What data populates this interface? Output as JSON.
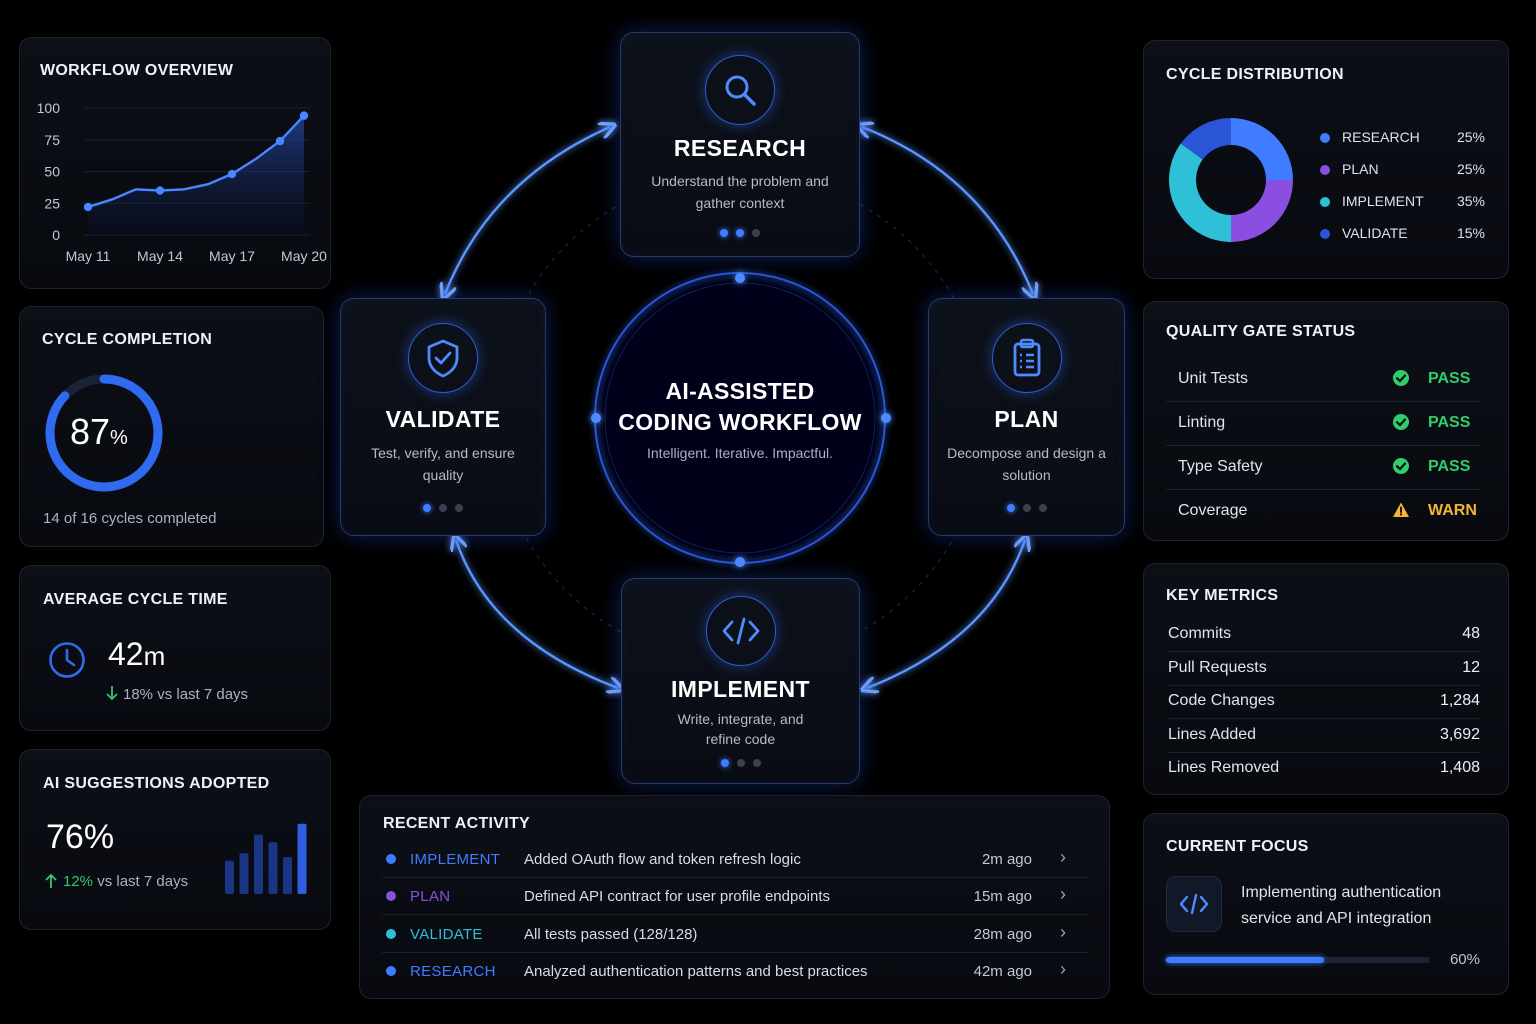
{
  "colors": {
    "research": "#3f7cff",
    "plan": "#8a4fe0",
    "implement": "#2fc0d8",
    "validate": "#2a55d6",
    "pass": "#2fce6b",
    "warn": "#f2b632",
    "accent": "#3f7cff"
  },
  "workflow_overview": {
    "title": "WORKFLOW OVERVIEW",
    "chart_data": {
      "type": "area",
      "x": [
        "May 11",
        "May 12",
        "May 13",
        "May 14",
        "May 15",
        "May 16",
        "May 17",
        "May 18",
        "May 19",
        "May 20"
      ],
      "values": [
        22,
        28,
        36,
        35,
        36,
        40,
        48,
        60,
        74,
        94
      ],
      "markers": [
        0,
        3,
        6,
        8,
        9
      ],
      "xticks": [
        "May 11",
        "May 14",
        "May 17",
        "May 20"
      ],
      "yticks": [
        "100",
        "75",
        "50",
        "25",
        "0"
      ],
      "ylim": [
        0,
        100
      ],
      "grid": true
    }
  },
  "cycle_completion": {
    "title": "CYCLE COMPLETION",
    "value": "87",
    "unit": "%",
    "fraction": 0.87,
    "caption": "14 of 16 cycles completed"
  },
  "avg_cycle_time": {
    "title": "AVERAGE CYCLE TIME",
    "value": "42",
    "unit": "m",
    "delta_icon": "arrow-down-icon",
    "delta": "18% vs last 7 days"
  },
  "ai_suggestions": {
    "title": "AI SUGGESTIONS ADOPTED",
    "value": "76%",
    "delta_icon": "arrow-up-icon",
    "delta_value": "12%",
    "delta_text": "vs last 7 days",
    "bars": [
      0.45,
      0.55,
      0.8,
      0.7,
      0.5,
      0.95
    ]
  },
  "workflow": {
    "center_title_1": "AI-ASSISTED",
    "center_title_2": "CODING WORKFLOW",
    "center_subtitle": "Intelligent. Iterative. Impactful.",
    "nodes": {
      "research": {
        "title": "RESEARCH",
        "desc": "Understand the problem and gather context",
        "icon": "search-icon"
      },
      "plan": {
        "title": "PLAN",
        "desc": "Decompose and design a solution",
        "icon": "clipboard-icon"
      },
      "implement": {
        "title": "IMPLEMENT",
        "desc": "Write, integrate, and refine code",
        "icon": "code-icon"
      },
      "validate": {
        "title": "VALIDATE",
        "desc": "Test, verify, and ensure quality",
        "icon": "shield-check-icon"
      }
    }
  },
  "cycle_distribution": {
    "title": "CYCLE DISTRIBUTION",
    "chart_data": {
      "type": "pie",
      "donut": true,
      "slices": [
        {
          "label": "RESEARCH",
          "value": 25,
          "pct": "25%",
          "color": "#3f7cff"
        },
        {
          "label": "PLAN",
          "value": 25,
          "pct": "25%",
          "color": "#8a4fe0"
        },
        {
          "label": "IMPLEMENT",
          "value": 35,
          "pct": "35%",
          "color": "#2fc0d8"
        },
        {
          "label": "VALIDATE",
          "value": 15,
          "pct": "15%",
          "color": "#2a55d6"
        }
      ]
    }
  },
  "quality_gate": {
    "title": "QUALITY GATE STATUS",
    "rows": [
      {
        "name": "Unit Tests",
        "status": "PASS",
        "icon": "check-circle-icon"
      },
      {
        "name": "Linting",
        "status": "PASS",
        "icon": "check-circle-icon"
      },
      {
        "name": "Type Safety",
        "status": "PASS",
        "icon": "check-circle-icon"
      },
      {
        "name": "Coverage",
        "status": "WARN",
        "icon": "warning-triangle-icon"
      }
    ]
  },
  "key_metrics": {
    "title": "KEY METRICS",
    "rows": [
      {
        "name": "Commits",
        "value": "48"
      },
      {
        "name": "Pull Requests",
        "value": "12"
      },
      {
        "name": "Code Changes",
        "value": "1,284"
      },
      {
        "name": "Lines Added",
        "value": "3,692"
      },
      {
        "name": "Lines Removed",
        "value": "1,408"
      }
    ]
  },
  "current_focus": {
    "title": "CURRENT FOCUS",
    "icon": "code-icon",
    "text_1": "Implementing authentication",
    "text_2": "service and API integration",
    "progress": 0.6,
    "progress_label": "60%"
  },
  "recent_activity": {
    "title": "RECENT ACTIVITY",
    "rows": [
      {
        "tag": "IMPLEMENT",
        "color": "#3f7cff",
        "text": "Added OAuth flow and token refresh logic",
        "time": "2m ago"
      },
      {
        "tag": "PLAN",
        "color": "#8a4fe0",
        "text": "Defined API contract for user profile endpoints",
        "time": "15m ago"
      },
      {
        "tag": "VALIDATE",
        "color": "#2fc0d8",
        "text": "All tests passed (128/128)",
        "time": "28m ago"
      },
      {
        "tag": "RESEARCH",
        "color": "#3f7cff",
        "text": "Analyzed authentication patterns and best practices",
        "time": "42m ago"
      }
    ]
  }
}
